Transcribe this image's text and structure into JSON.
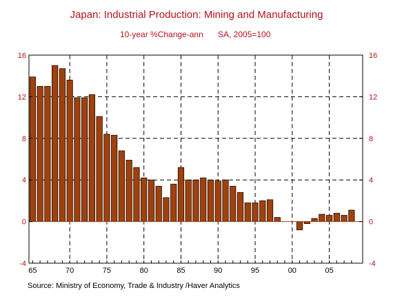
{
  "chart_data": {
    "type": "bar",
    "title": "Japan: Industrial Production: Mining and Manufacturing",
    "subtitle_left": "10-year %Change-ann",
    "subtitle_right": "SA, 2005=100",
    "source": "Source:  Ministry of Economy, Trade & Industry /Haver Analytics",
    "ylim": [
      -4,
      16
    ],
    "yticks": [
      -4,
      0,
      4,
      8,
      12,
      16
    ],
    "xlim": [
      1964.5,
      2009.5
    ],
    "xtick_labels": [
      {
        "year": 1965,
        "label": "65"
      },
      {
        "year": 1970,
        "label": "70"
      },
      {
        "year": 1975,
        "label": "75"
      },
      {
        "year": 1980,
        "label": "80"
      },
      {
        "year": 1985,
        "label": "85"
      },
      {
        "year": 1990,
        "label": "90"
      },
      {
        "year": 1995,
        "label": "95"
      },
      {
        "year": 2000,
        "label": "00"
      },
      {
        "year": 2005,
        "label": "05"
      }
    ],
    "grid_years": [
      1970,
      1975,
      1980,
      1985,
      1990,
      1995,
      2000,
      2005
    ],
    "grid_values": [
      4,
      8,
      12
    ],
    "bar_color": "#a0410d",
    "bar_edge_color": "#1a0800",
    "years": [
      1965,
      1966,
      1967,
      1968,
      1969,
      1970,
      1971,
      1972,
      1973,
      1974,
      1975,
      1976,
      1977,
      1978,
      1979,
      1980,
      1981,
      1982,
      1983,
      1984,
      1985,
      1986,
      1987,
      1988,
      1989,
      1990,
      1991,
      1992,
      1993,
      1994,
      1995,
      1996,
      1997,
      1998,
      1999,
      2000,
      2001,
      2002,
      2003,
      2004,
      2005,
      2006,
      2007,
      2008
    ],
    "values": [
      13.9,
      13.0,
      13.0,
      15.0,
      14.7,
      13.6,
      11.9,
      11.9,
      12.2,
      10.1,
      8.4,
      8.3,
      6.8,
      5.9,
      5.2,
      4.2,
      4.0,
      3.4,
      2.3,
      3.6,
      5.2,
      4.0,
      4.0,
      4.2,
      4.0,
      3.9,
      4.0,
      3.4,
      2.8,
      1.8,
      1.8,
      2.0,
      2.1,
      0.4,
      0.0,
      0.0,
      -0.8,
      -0.2,
      0.3,
      0.7,
      0.6,
      0.8,
      0.6,
      1.1
    ]
  }
}
